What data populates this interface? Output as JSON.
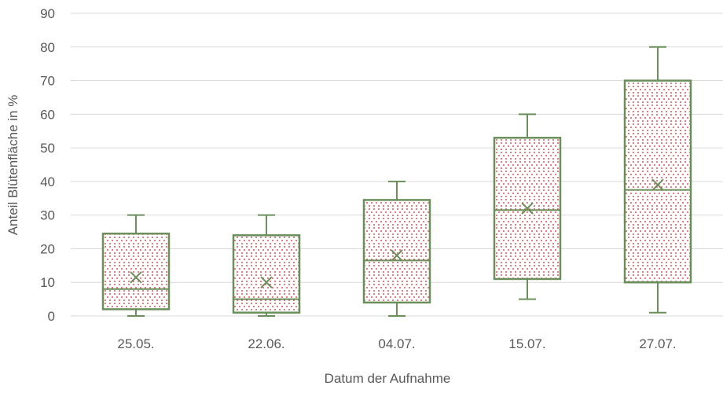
{
  "chart_data": {
    "type": "boxplot",
    "xlabel": "Datum der Aufnahme",
    "ylabel": "Anteil Blütenfläche in %",
    "ylim": [
      0,
      90
    ],
    "y_ticks": [
      0,
      10,
      20,
      30,
      40,
      50,
      60,
      70,
      80,
      90
    ],
    "grid": true,
    "categories": [
      "25.05.",
      "22.06.",
      "04.07.",
      "15.07.",
      "27.07."
    ],
    "boxes": [
      {
        "min": 0,
        "q1": 2,
        "median": 8,
        "q3": 24.5,
        "max": 30,
        "mean": 11.5
      },
      {
        "min": 0,
        "q1": 1,
        "median": 5,
        "q3": 24,
        "max": 30,
        "mean": 10
      },
      {
        "min": 0,
        "q1": 4,
        "median": 16.5,
        "q3": 34.5,
        "max": 40,
        "mean": 18
      },
      {
        "min": 5,
        "q1": 11,
        "median": 31.5,
        "q3": 53,
        "max": 60,
        "mean": 32
      },
      {
        "min": 1,
        "q1": 10,
        "median": 37.5,
        "q3": 70,
        "max": 80,
        "mean": 39
      }
    ],
    "colors": {
      "box_stroke": "#6a8f5a",
      "pattern_dot": "#d9202a",
      "grid": "#d9d9d9",
      "text": "#595959"
    }
  }
}
